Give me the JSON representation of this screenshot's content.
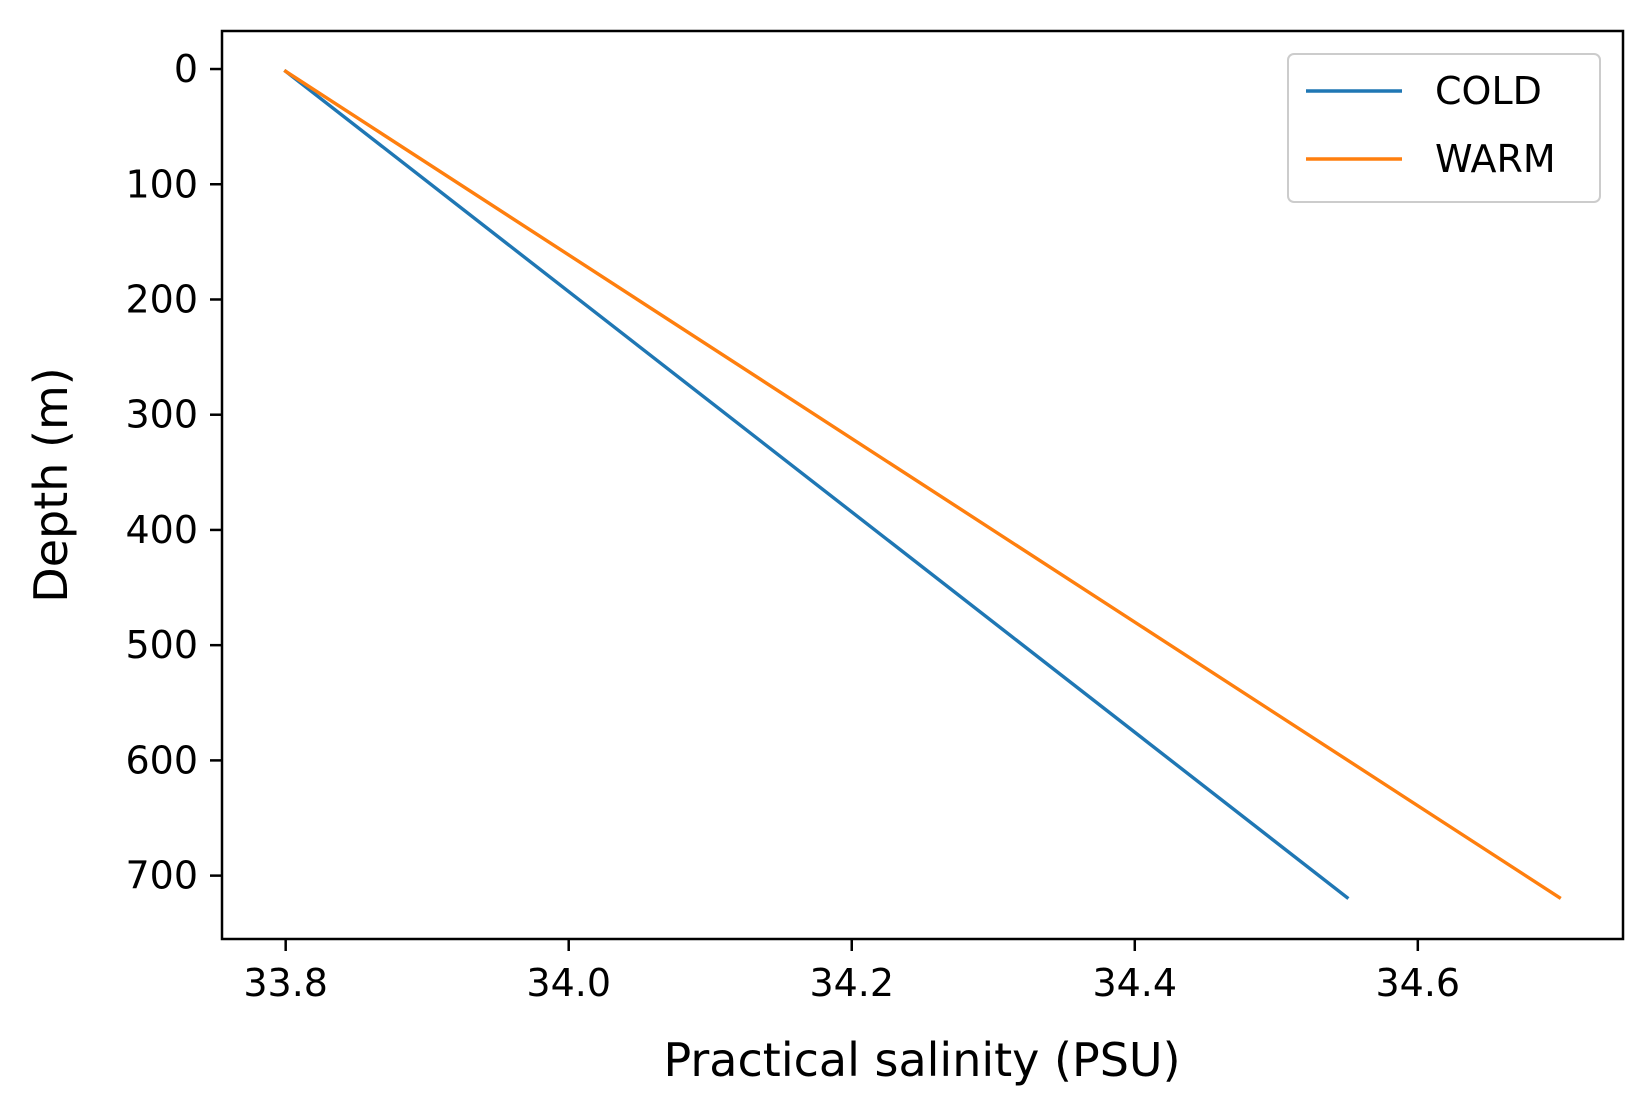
{
  "chart_data": {
    "type": "line",
    "xlabel": "Practical salinity (PSU)",
    "ylabel": "Depth (m)",
    "xlim": [
      33.755,
      34.745
    ],
    "ylim": [
      755,
      -33
    ],
    "y_inverted": true,
    "xticks": [
      "33.8",
      "34.0",
      "34.2",
      "34.4",
      "34.6"
    ],
    "yticks": [
      "0",
      "100",
      "200",
      "300",
      "400",
      "500",
      "600",
      "700"
    ],
    "grid": false,
    "legend": "top-right",
    "series": [
      {
        "name": "COLD",
        "color": "#1f77b4",
        "x": [
          33.8,
          34.55
        ],
        "y": [
          2,
          719
        ]
      },
      {
        "name": "WARM",
        "color": "#ff7f0e",
        "x": [
          33.8,
          34.7
        ],
        "y": [
          2,
          719
        ]
      }
    ]
  }
}
